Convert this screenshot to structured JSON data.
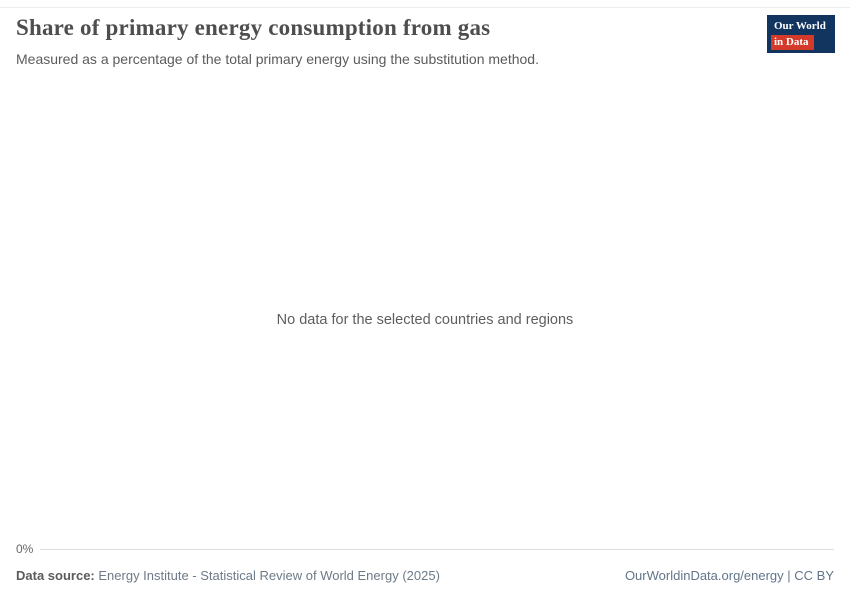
{
  "header": {
    "title": "Share of primary energy consumption from gas",
    "subtitle": "Measured as a percentage of the total primary energy using the substitution method."
  },
  "logo": {
    "line1": "Our World",
    "line2": "in Data",
    "bg_color": "#12355f",
    "accent_color": "#d43a2a"
  },
  "chart": {
    "no_data_message": "No data for the selected countries and regions",
    "y_axis_tick": "0%"
  },
  "footer": {
    "source_label": "Data source:",
    "source_text": "Energy Institute - Statistical Review of World Energy (2025)",
    "credit": "OurWorldinData.org/energy | CC BY"
  },
  "chart_data": {
    "type": "line",
    "title": "Share of primary energy consumption from gas",
    "subtitle": "Measured as a percentage of the total primary energy using the substitution method.",
    "series": [],
    "categories": [],
    "xlabel": "",
    "ylabel": "",
    "y_ticks": [
      "0%"
    ],
    "ylim_min_label": "0%",
    "grid": false,
    "legend": false,
    "annotations": [
      "No data for the selected countries and regions"
    ]
  }
}
